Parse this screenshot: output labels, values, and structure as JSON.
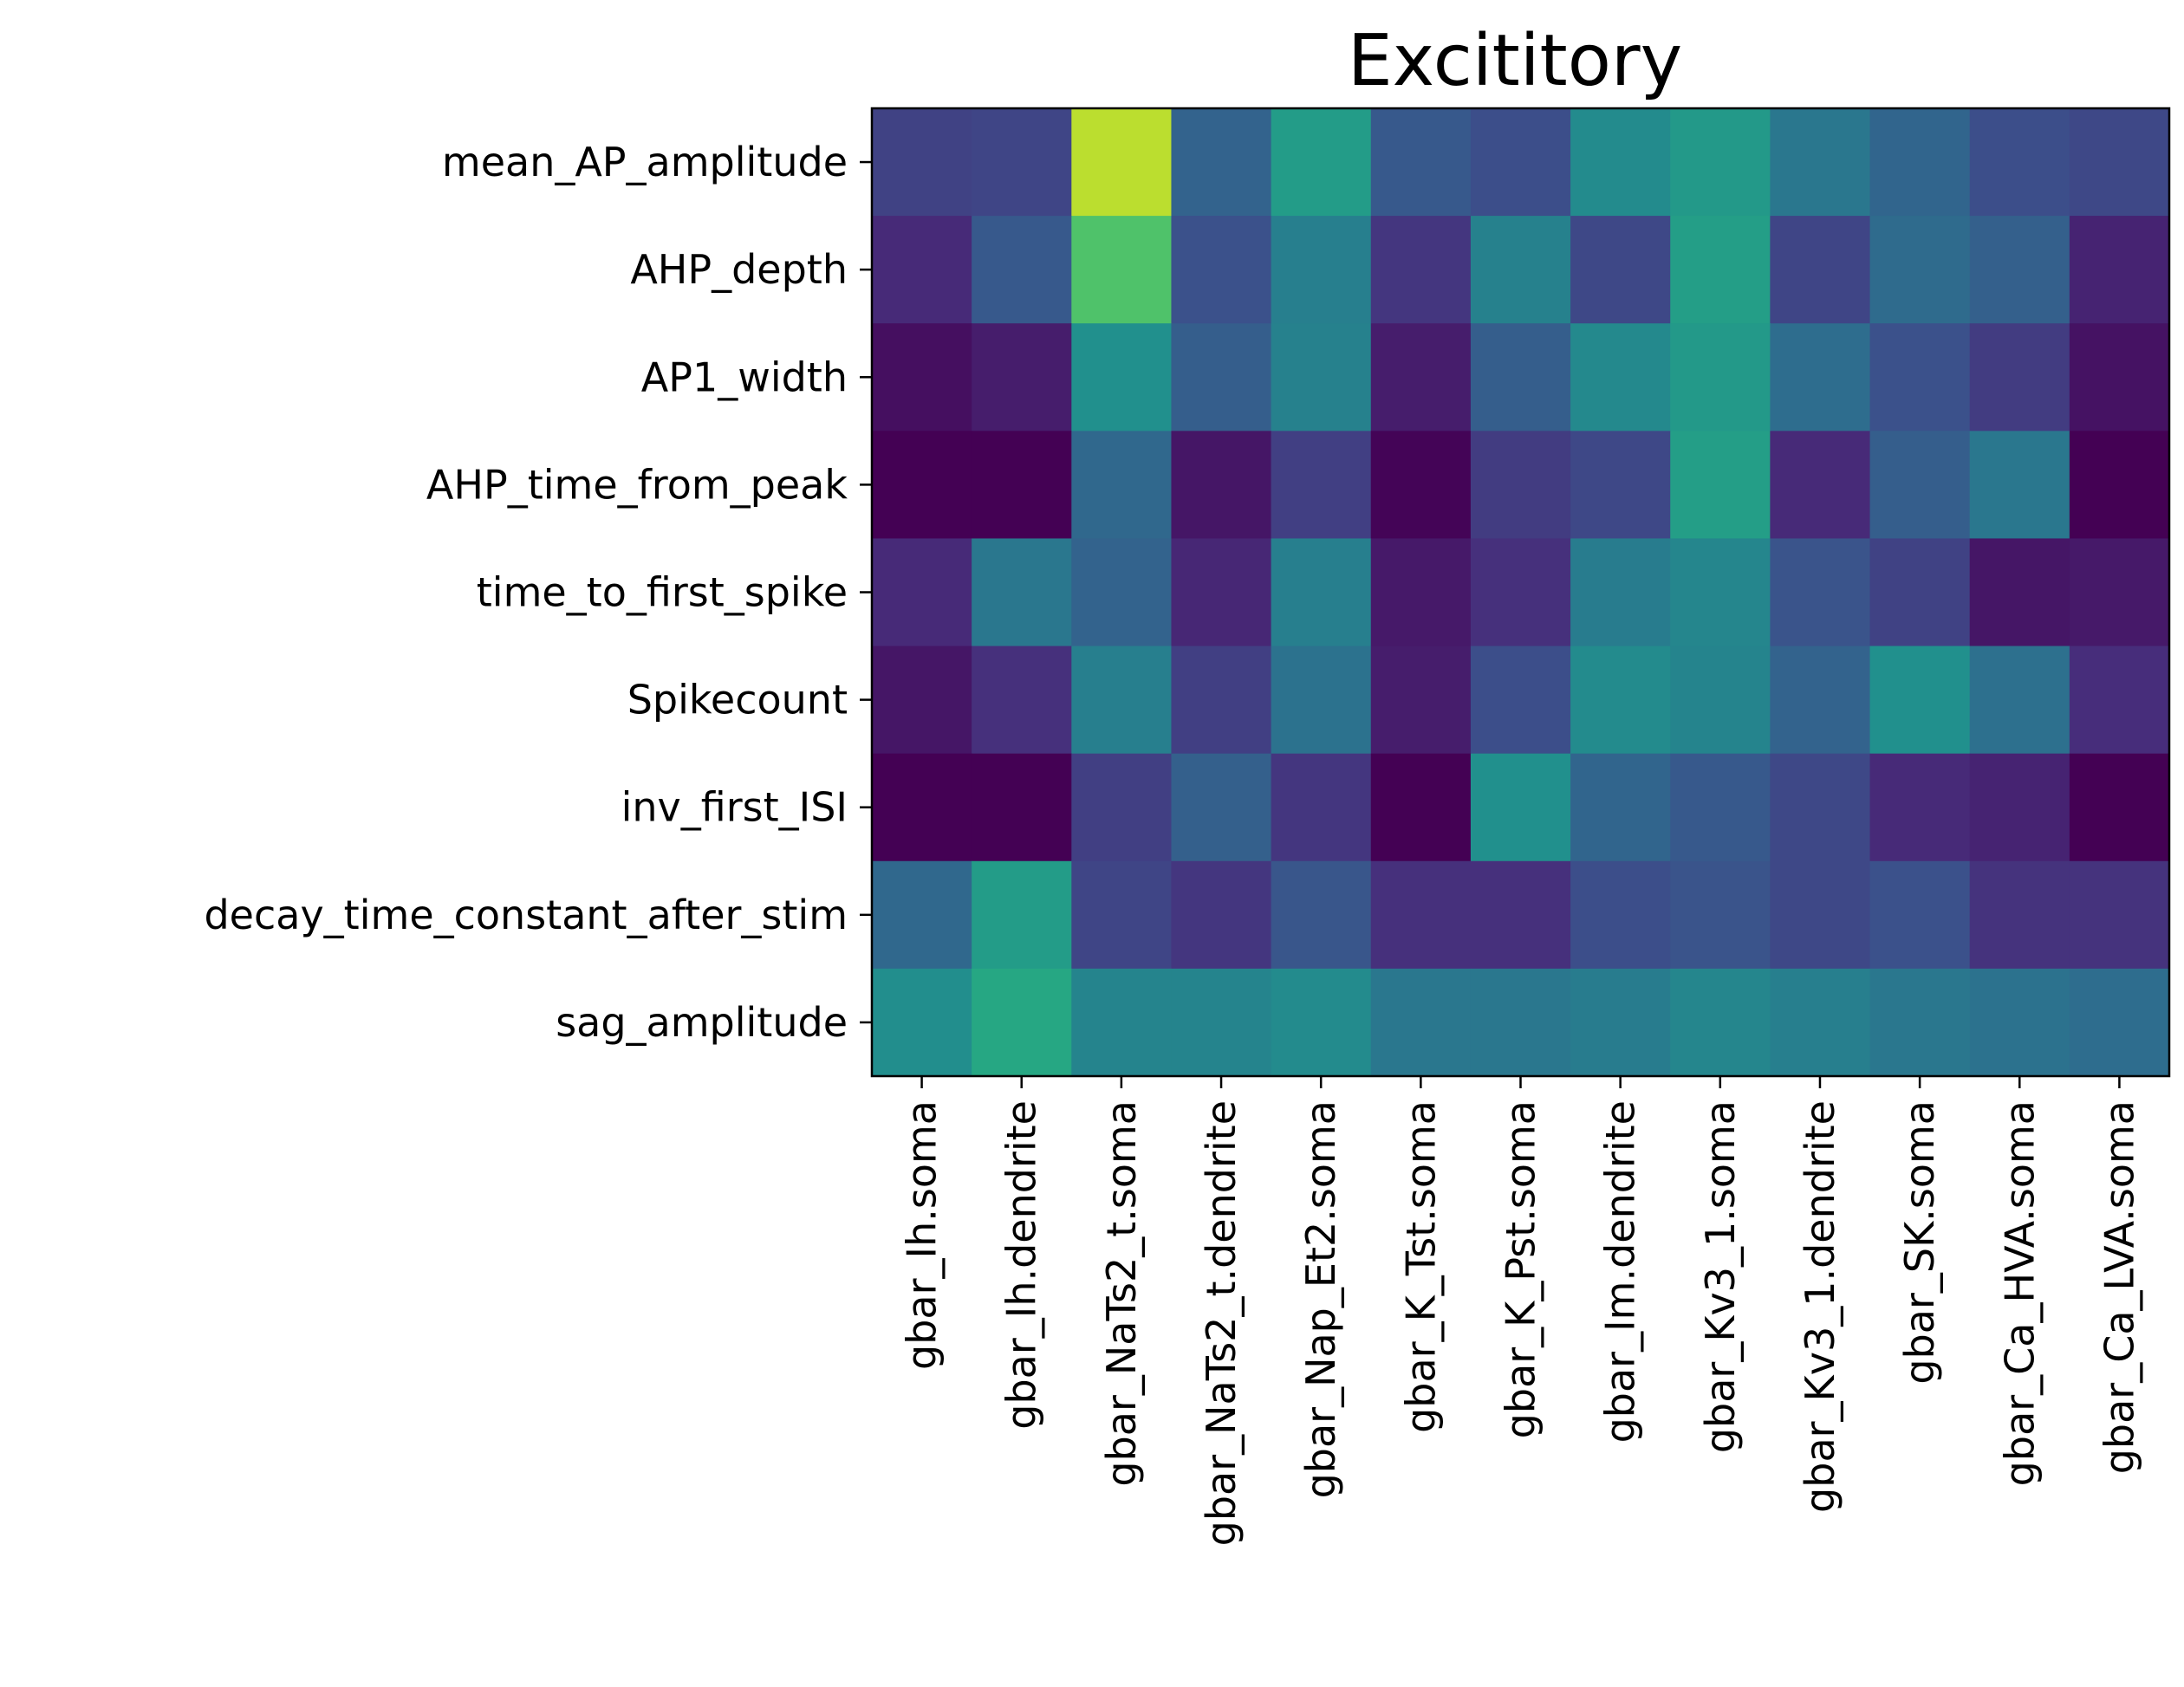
{
  "chart_data": {
    "type": "heatmap",
    "title": "Excititory",
    "xlabel": "",
    "ylabel": "",
    "x_categories": [
      "gbar_Ih.soma",
      "gbar_Ih.dendrite",
      "gbar_NaTs2_t.soma",
      "gbar_NaTs2_t.dendrite",
      "gbar_Nap_Et2.soma",
      "gbar_K_Tst.soma",
      "gbar_K_Pst.soma",
      "gbar_Im.dendrite",
      "gbar_Kv3_1.soma",
      "gbar_Kv3_1.dendrite",
      "gbar_SK.soma",
      "gbar_Ca_HVA.soma",
      "gbar_Ca_LVA.soma"
    ],
    "y_categories": [
      "mean_AP_amplitude",
      "AHP_depth",
      "AP1_width",
      "AHP_time_from_peak",
      "time_to_first_spike",
      "Spikecount",
      "inv_first_ISI",
      "decay_time_constant_after_stim",
      "sag_amplitude"
    ],
    "values": [
      [
        0.2,
        0.21,
        0.9,
        0.32,
        0.55,
        0.28,
        0.24,
        0.48,
        0.54,
        0.4,
        0.33,
        0.24,
        0.22
      ],
      [
        0.12,
        0.28,
        0.72,
        0.25,
        0.43,
        0.16,
        0.44,
        0.22,
        0.56,
        0.21,
        0.35,
        0.31,
        0.1
      ],
      [
        0.04,
        0.08,
        0.5,
        0.3,
        0.44,
        0.08,
        0.3,
        0.47,
        0.54,
        0.36,
        0.25,
        0.18,
        0.05
      ],
      [
        0.0,
        0.0,
        0.34,
        0.06,
        0.19,
        0.01,
        0.18,
        0.22,
        0.56,
        0.12,
        0.3,
        0.4,
        0.0
      ],
      [
        0.12,
        0.4,
        0.32,
        0.11,
        0.43,
        0.07,
        0.14,
        0.42,
        0.46,
        0.26,
        0.2,
        0.06,
        0.07
      ],
      [
        0.06,
        0.14,
        0.43,
        0.19,
        0.38,
        0.08,
        0.24,
        0.48,
        0.45,
        0.32,
        0.5,
        0.37,
        0.13
      ],
      [
        0.0,
        0.0,
        0.19,
        0.31,
        0.16,
        0.0,
        0.5,
        0.33,
        0.28,
        0.22,
        0.12,
        0.1,
        0.0
      ],
      [
        0.34,
        0.55,
        0.21,
        0.16,
        0.27,
        0.14,
        0.14,
        0.24,
        0.26,
        0.22,
        0.25,
        0.15,
        0.15
      ],
      [
        0.49,
        0.6,
        0.45,
        0.45,
        0.48,
        0.4,
        0.4,
        0.42,
        0.46,
        0.43,
        0.4,
        0.38,
        0.36
      ]
    ],
    "colormap": "viridis",
    "grid": false
  }
}
